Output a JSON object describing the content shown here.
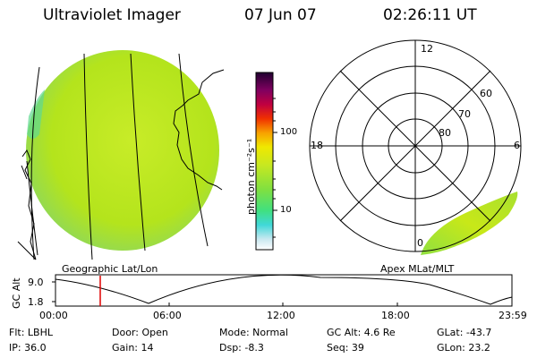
{
  "header": {
    "instrument": "Ultraviolet Imager",
    "date": "07 Jun 07",
    "time": "02:26:11 UT"
  },
  "colorbar": {
    "unit_label": "photon cm⁻²s⁻¹",
    "ticks": [
      "100",
      "10"
    ]
  },
  "polar": {
    "mlt_labels": [
      "12",
      "18",
      "6",
      "0"
    ],
    "lat_labels": [
      "60",
      "70",
      "80"
    ]
  },
  "map_labels": {
    "left": "Geographic Lat/Lon",
    "right": "Apex MLat/MLT"
  },
  "timeline": {
    "ylabel": "GC Alt",
    "y_ticks": [
      "9.0",
      "1.8"
    ],
    "x_ticks": [
      "00:00",
      "06:00",
      "12:00",
      "18:00",
      "23:59"
    ]
  },
  "info": {
    "flt": "Flt: LBHL",
    "ip": "IP: 36.0",
    "door": "Door: Open",
    "gain": "Gain: 14",
    "mode": "Mode: Normal",
    "dsp": "Dsp:   -8.3",
    "gcalt": "GC Alt: 4.6 Re",
    "seq": "Seq: 39",
    "glat": "GLat: -43.7",
    "glon": "GLon: 23.2"
  },
  "colors": {
    "disk": "#b4e61e",
    "aurora": "#c8e614",
    "marker": "#e00000"
  }
}
